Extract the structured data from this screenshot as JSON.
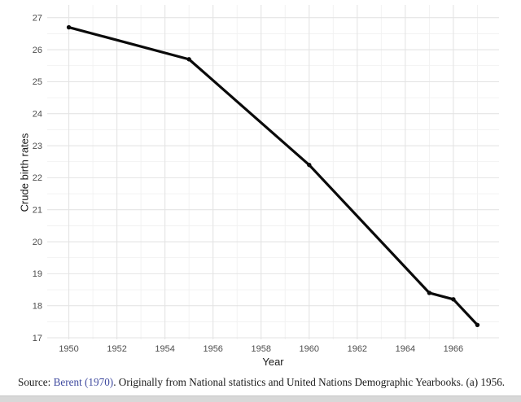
{
  "page": {
    "background": "#ffffff",
    "bottom_bar_color": "#d8d8d8"
  },
  "chart_data": {
    "type": "line",
    "xlabel": "Year",
    "ylabel": "Crude birth rates",
    "series": [
      {
        "name": "Crude birth rate",
        "x": [
          1950,
          1955,
          1960,
          1965,
          1966,
          1967
        ],
        "y": [
          26.7,
          25.7,
          22.4,
          18.4,
          18.2,
          17.4
        ]
      }
    ],
    "x_ticks": [
      1950,
      1952,
      1954,
      1956,
      1958,
      1960,
      1962,
      1964,
      1966
    ],
    "y_ticks": [
      17,
      18,
      19,
      20,
      21,
      22,
      23,
      24,
      25,
      26,
      27
    ],
    "xlim": [
      1949.1,
      1967.9
    ],
    "ylim": [
      16.95,
      27.4
    ],
    "grid": {
      "show_major": true,
      "show_minor": true,
      "major_color": "#e4e4e4",
      "minor_color": "#f1f1f1"
    },
    "legend": "none",
    "line_color": "#0a0a0a",
    "line_width": 3.2,
    "marker": "circle",
    "marker_radius": 2.7,
    "tick_label_color": "#4d4d4d",
    "axis_title_color": "#1a1a1a"
  },
  "caption": {
    "prefix": "Source: ",
    "citation": "Berent (1970)",
    "suffix": ". Originally from National statistics and United Nations Demographic Yearbooks. (a) 1956.",
    "citation_color": "#3f4a9f",
    "text_color": "#1a1a1a"
  }
}
